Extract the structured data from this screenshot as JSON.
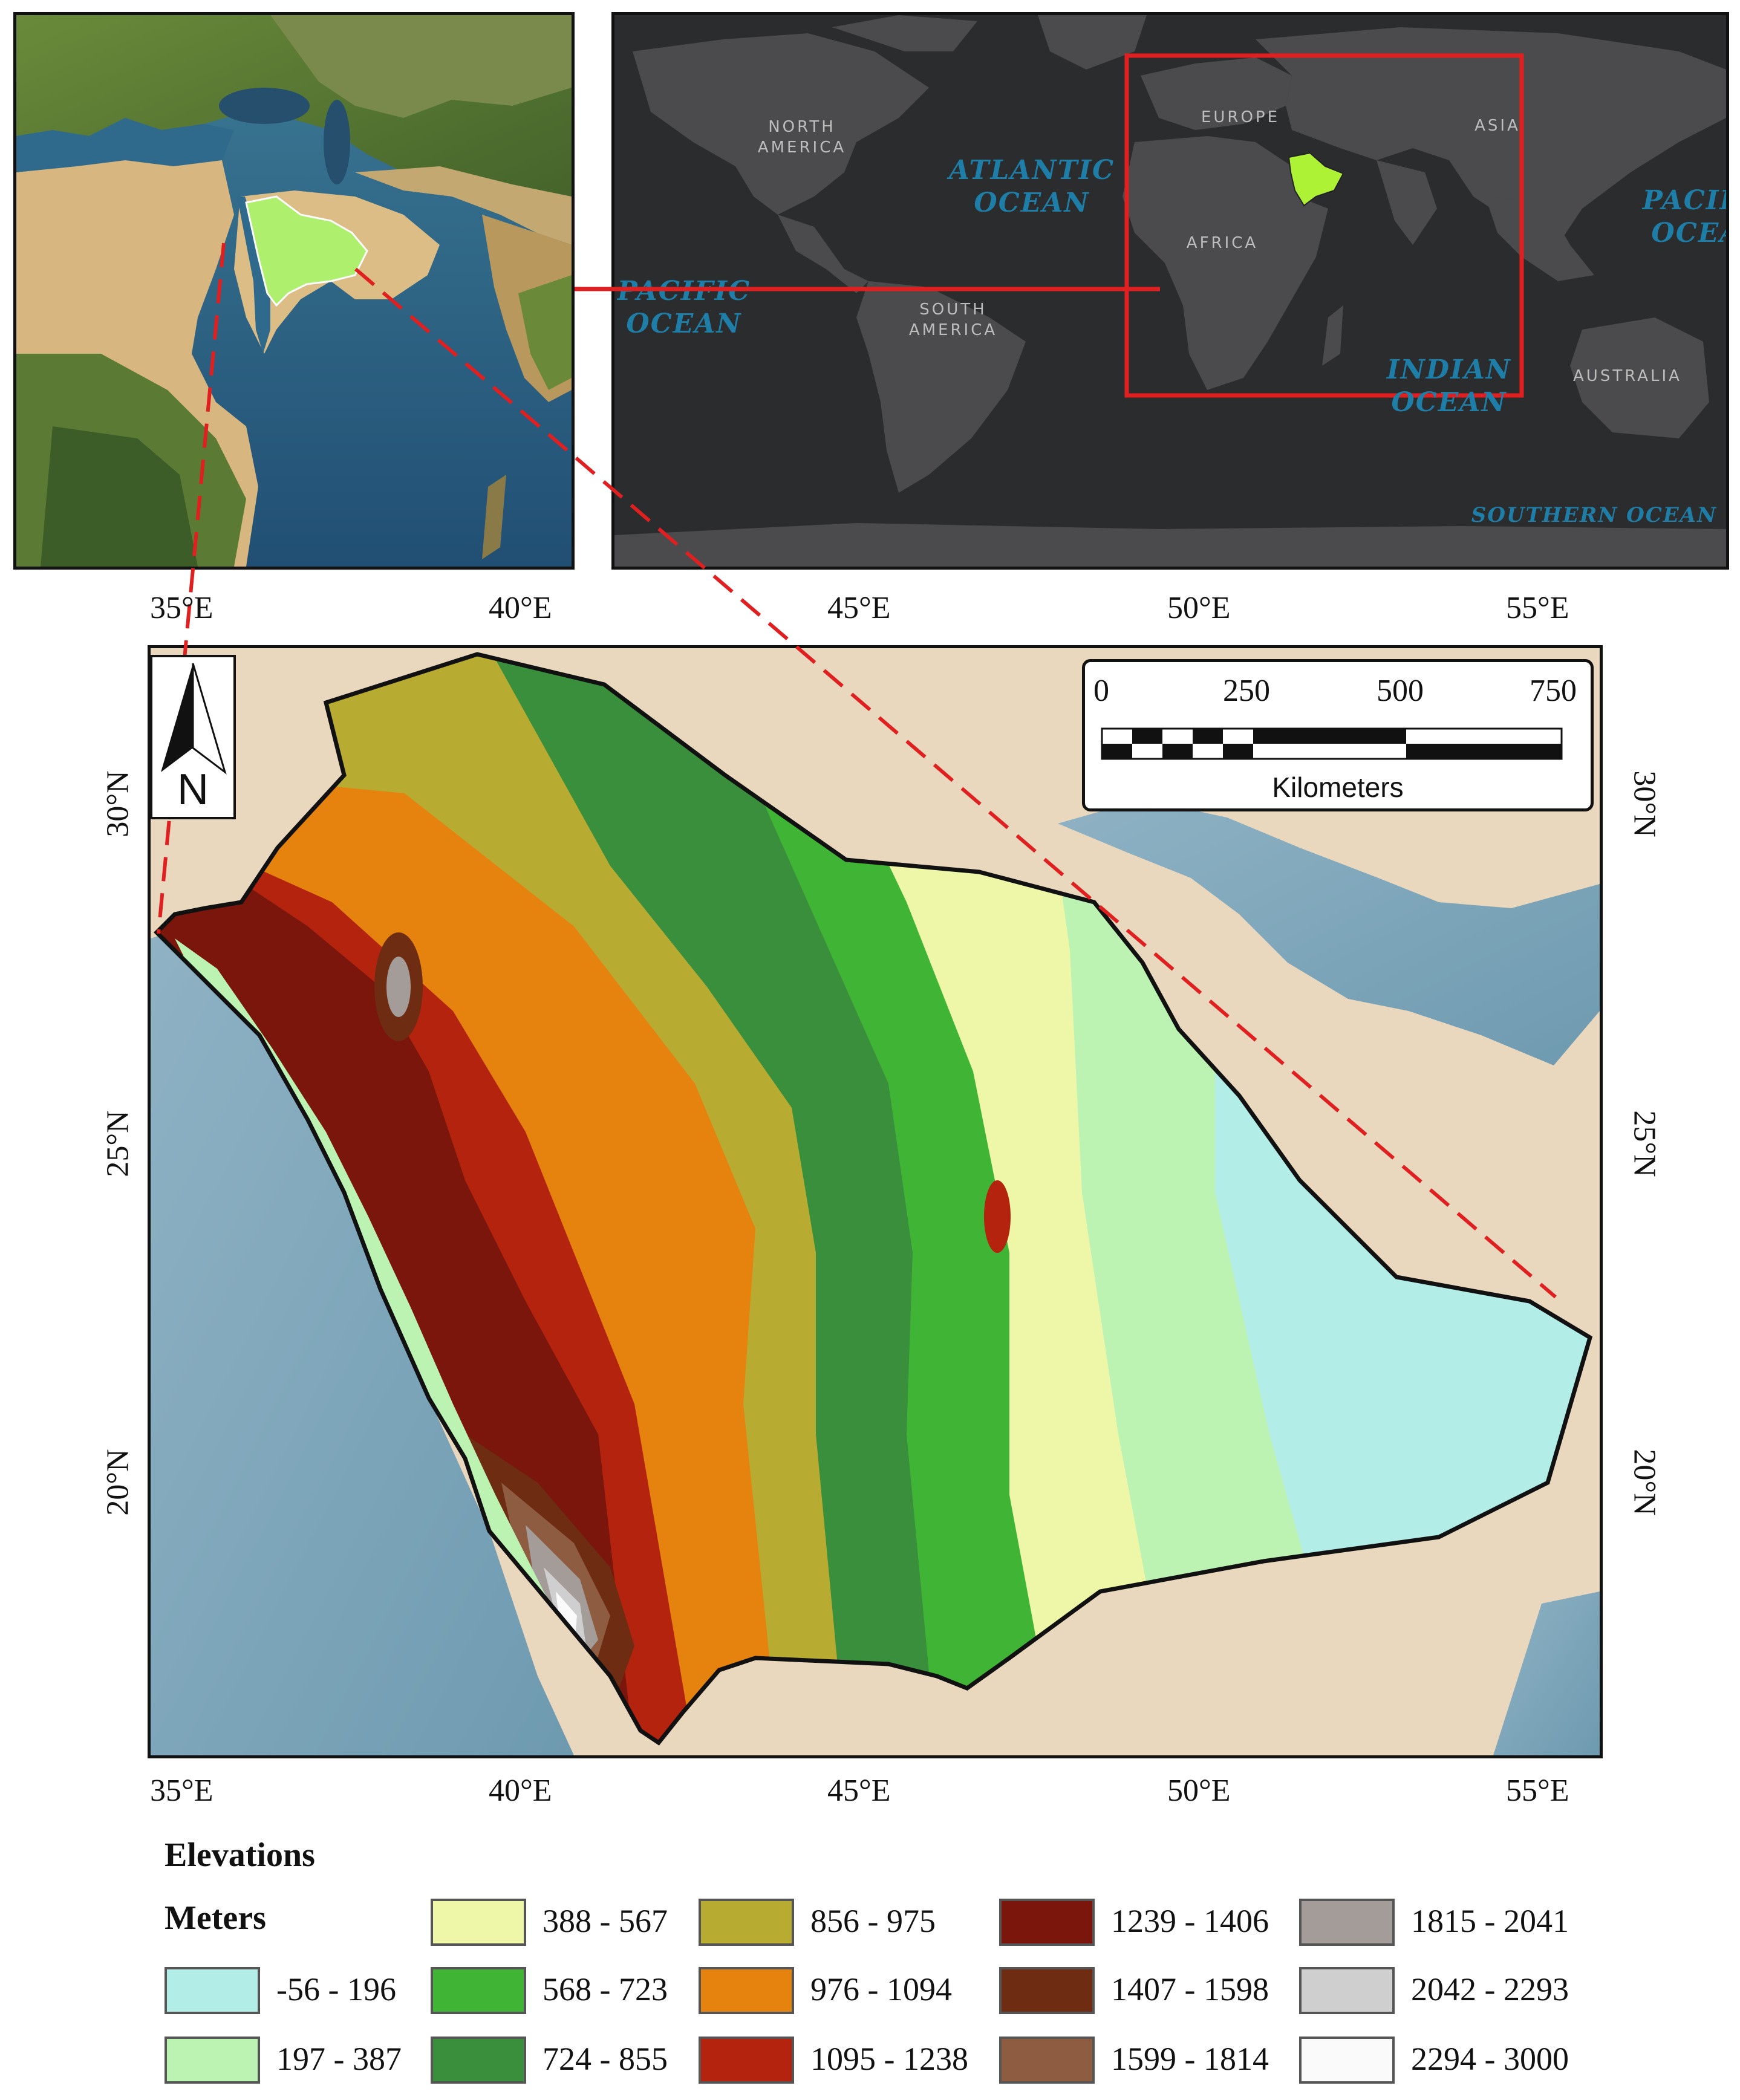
{
  "world_inset": {
    "labels": {
      "north_america": "NORTH\nAMERICA",
      "south_america": "SOUTH\nAMERICA",
      "europe": "EUROPE",
      "asia": "ASIA",
      "africa": "AFRICA",
      "australia": "AUSTRALIA",
      "atlantic": "ATLANTIC\nOCEAN",
      "pacific_left": "PACIFIC\nOCEAN",
      "pacific_right": "PACIFIC\nOCEAN",
      "indian": "INDIAN\nOCEAN",
      "southern": "SOUTHERN OCEAN"
    },
    "colors": {
      "background": "#2b2c2e",
      "land": "#4b4b4d",
      "highlight_box": "#e02020",
      "study_area": "#aef236"
    }
  },
  "regional_inset": {
    "colors": {
      "study_area": "#aef06e",
      "sea": "#2f6a8c",
      "desert": "#d8b680",
      "vegetation": "#4d6a2e"
    }
  },
  "main_map": {
    "x_ticks": [
      "35°E",
      "40°E",
      "45°E",
      "50°E",
      "55°E"
    ],
    "y_ticks": [
      "30°N",
      "25°N",
      "20°N"
    ],
    "north_letter": "N",
    "scale_bar": {
      "labels": [
        "0",
        "250",
        "500",
        "750"
      ],
      "unit": "Kilometers"
    },
    "connector_color": "#e02020"
  },
  "legend": {
    "title": "Elevations",
    "unit": "Meters",
    "classes": [
      {
        "label": "-56 - 196",
        "color": "#b2ede8"
      },
      {
        "label": "197 - 387",
        "color": "#bdf3b2"
      },
      {
        "label": "388 - 567",
        "color": "#eef7a8"
      },
      {
        "label": "568 - 723",
        "color": "#40b535"
      },
      {
        "label": "724 - 855",
        "color": "#3a8f3c"
      },
      {
        "label": "856 - 975",
        "color": "#b8ab32"
      },
      {
        "label": "976 - 1094",
        "color": "#e6830e"
      },
      {
        "label": "1095 - 1238",
        "color": "#b4230e"
      },
      {
        "label": "1239 - 1406",
        "color": "#7a160c"
      },
      {
        "label": "1407 - 1598",
        "color": "#6e2c12"
      },
      {
        "label": "1599 - 1814",
        "color": "#8e5c40"
      },
      {
        "label": "1815 - 2041",
        "color": "#a49c98"
      },
      {
        "label": "2042 - 2293",
        "color": "#cfcfcf"
      },
      {
        "label": "2294 - 3000",
        "color": "#fafafa"
      }
    ]
  }
}
